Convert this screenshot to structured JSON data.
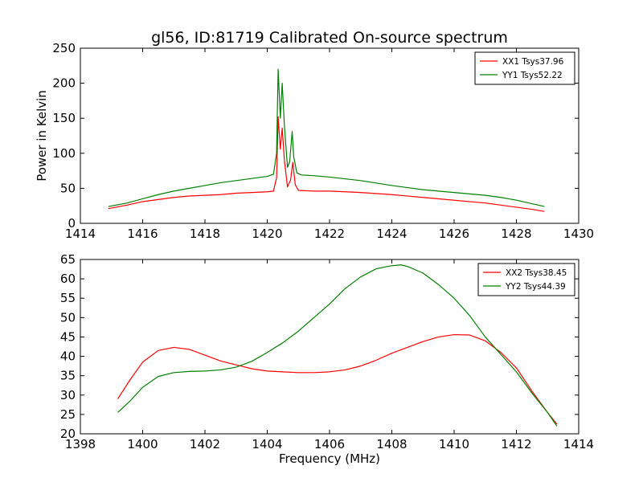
{
  "title": "gl56, ID:81719 Calibrated On-source spectrum",
  "colors": {
    "xx": "#ff0000",
    "yy": "#008000"
  },
  "chart_data": [
    {
      "type": "line",
      "ylabel": "Power in Kelvin",
      "xlim": [
        1414,
        1430
      ],
      "ylim": [
        0,
        250
      ],
      "xticks": [
        1414,
        1416,
        1418,
        1420,
        1422,
        1424,
        1426,
        1428,
        1430
      ],
      "yticks": [
        0,
        50,
        100,
        150,
        200,
        250
      ],
      "legend_position": "top-right",
      "series": [
        {
          "name": "XX1 Tsys37.96",
          "color": "#ff0000",
          "x": [
            1414.9,
            1415.5,
            1416,
            1416.5,
            1417,
            1417.5,
            1418,
            1418.5,
            1419,
            1419.5,
            1420,
            1420.2,
            1420.3,
            1420.35,
            1420.42,
            1420.48,
            1420.55,
            1420.65,
            1420.75,
            1420.82,
            1420.9,
            1421.0,
            1421.5,
            1422,
            1423,
            1424,
            1425,
            1426,
            1427,
            1427.5,
            1428,
            1428.5,
            1428.9
          ],
          "y": [
            21,
            26,
            31,
            34,
            37,
            39,
            40,
            41,
            43,
            44,
            45,
            46,
            65,
            152,
            106,
            136,
            90,
            52,
            62,
            87,
            55,
            47,
            46,
            46,
            44,
            41,
            37,
            33,
            29,
            26,
            23,
            20,
            17
          ]
        },
        {
          "name": "YY1 Tsys52.22",
          "color": "#008000",
          "x": [
            1414.9,
            1415.5,
            1416,
            1416.5,
            1417,
            1417.5,
            1418,
            1418.5,
            1419,
            1419.5,
            1420,
            1420.2,
            1420.3,
            1420.35,
            1420.42,
            1420.48,
            1420.55,
            1420.65,
            1420.72,
            1420.8,
            1420.85,
            1420.95,
            1421.1,
            1421.5,
            1422,
            1423,
            1424,
            1425,
            1426,
            1427,
            1427.5,
            1428,
            1428.5,
            1428.9
          ],
          "y": [
            24,
            29,
            35,
            41,
            46,
            50,
            54,
            58,
            61,
            64,
            67,
            70,
            100,
            220,
            150,
            200,
            140,
            80,
            88,
            131,
            95,
            72,
            69,
            68,
            66,
            61,
            54,
            48,
            44,
            40,
            37,
            33,
            28,
            24
          ]
        }
      ]
    },
    {
      "type": "line",
      "xlabel": "Frequency (MHz)",
      "xlim": [
        1398,
        1414
      ],
      "ylim": [
        20,
        65
      ],
      "xticks": [
        1398,
        1400,
        1402,
        1404,
        1406,
        1408,
        1410,
        1412,
        1414
      ],
      "yticks": [
        20,
        25,
        30,
        35,
        40,
        45,
        50,
        55,
        60,
        65
      ],
      "legend_position": "top-right",
      "series": [
        {
          "name": "XX2 Tsys38.45",
          "color": "#ff0000",
          "x": [
            1399.2,
            1399.6,
            1400,
            1400.5,
            1401,
            1401.5,
            1402,
            1402.5,
            1403,
            1403.5,
            1404,
            1404.5,
            1405,
            1405.5,
            1406,
            1406.5,
            1407,
            1407.5,
            1408,
            1408.5,
            1409,
            1409.5,
            1410,
            1410.5,
            1411,
            1411.5,
            1412,
            1412.5,
            1413,
            1413.3
          ],
          "y": [
            29,
            34,
            38.5,
            41.5,
            42.3,
            41.8,
            40.3,
            38.8,
            37.8,
            36.8,
            36.2,
            36,
            35.8,
            35.8,
            36,
            36.5,
            37.5,
            39,
            40.8,
            42.3,
            43.8,
            45,
            45.6,
            45.5,
            44,
            41,
            37,
            31,
            25.5,
            22.5
          ]
        },
        {
          "name": "YY2 Tsys44.39",
          "color": "#008000",
          "x": [
            1399.2,
            1399.6,
            1400,
            1400.5,
            1401,
            1401.5,
            1402,
            1402.5,
            1403,
            1403.5,
            1404,
            1404.5,
            1405,
            1405.5,
            1406,
            1406.5,
            1407,
            1407.5,
            1408,
            1408.3,
            1408.5,
            1409,
            1409.5,
            1410,
            1410.5,
            1411,
            1411.5,
            1412,
            1412.5,
            1413,
            1413.3
          ],
          "y": [
            25.5,
            28.5,
            32,
            34.8,
            35.8,
            36.1,
            36.2,
            36.5,
            37.2,
            38.7,
            41,
            43.5,
            46.5,
            50,
            53.5,
            57.5,
            60.5,
            62.6,
            63.4,
            63.6,
            63.2,
            61.5,
            58.5,
            55,
            50.5,
            45,
            40.5,
            36,
            30.5,
            25.5,
            22
          ]
        }
      ]
    }
  ]
}
